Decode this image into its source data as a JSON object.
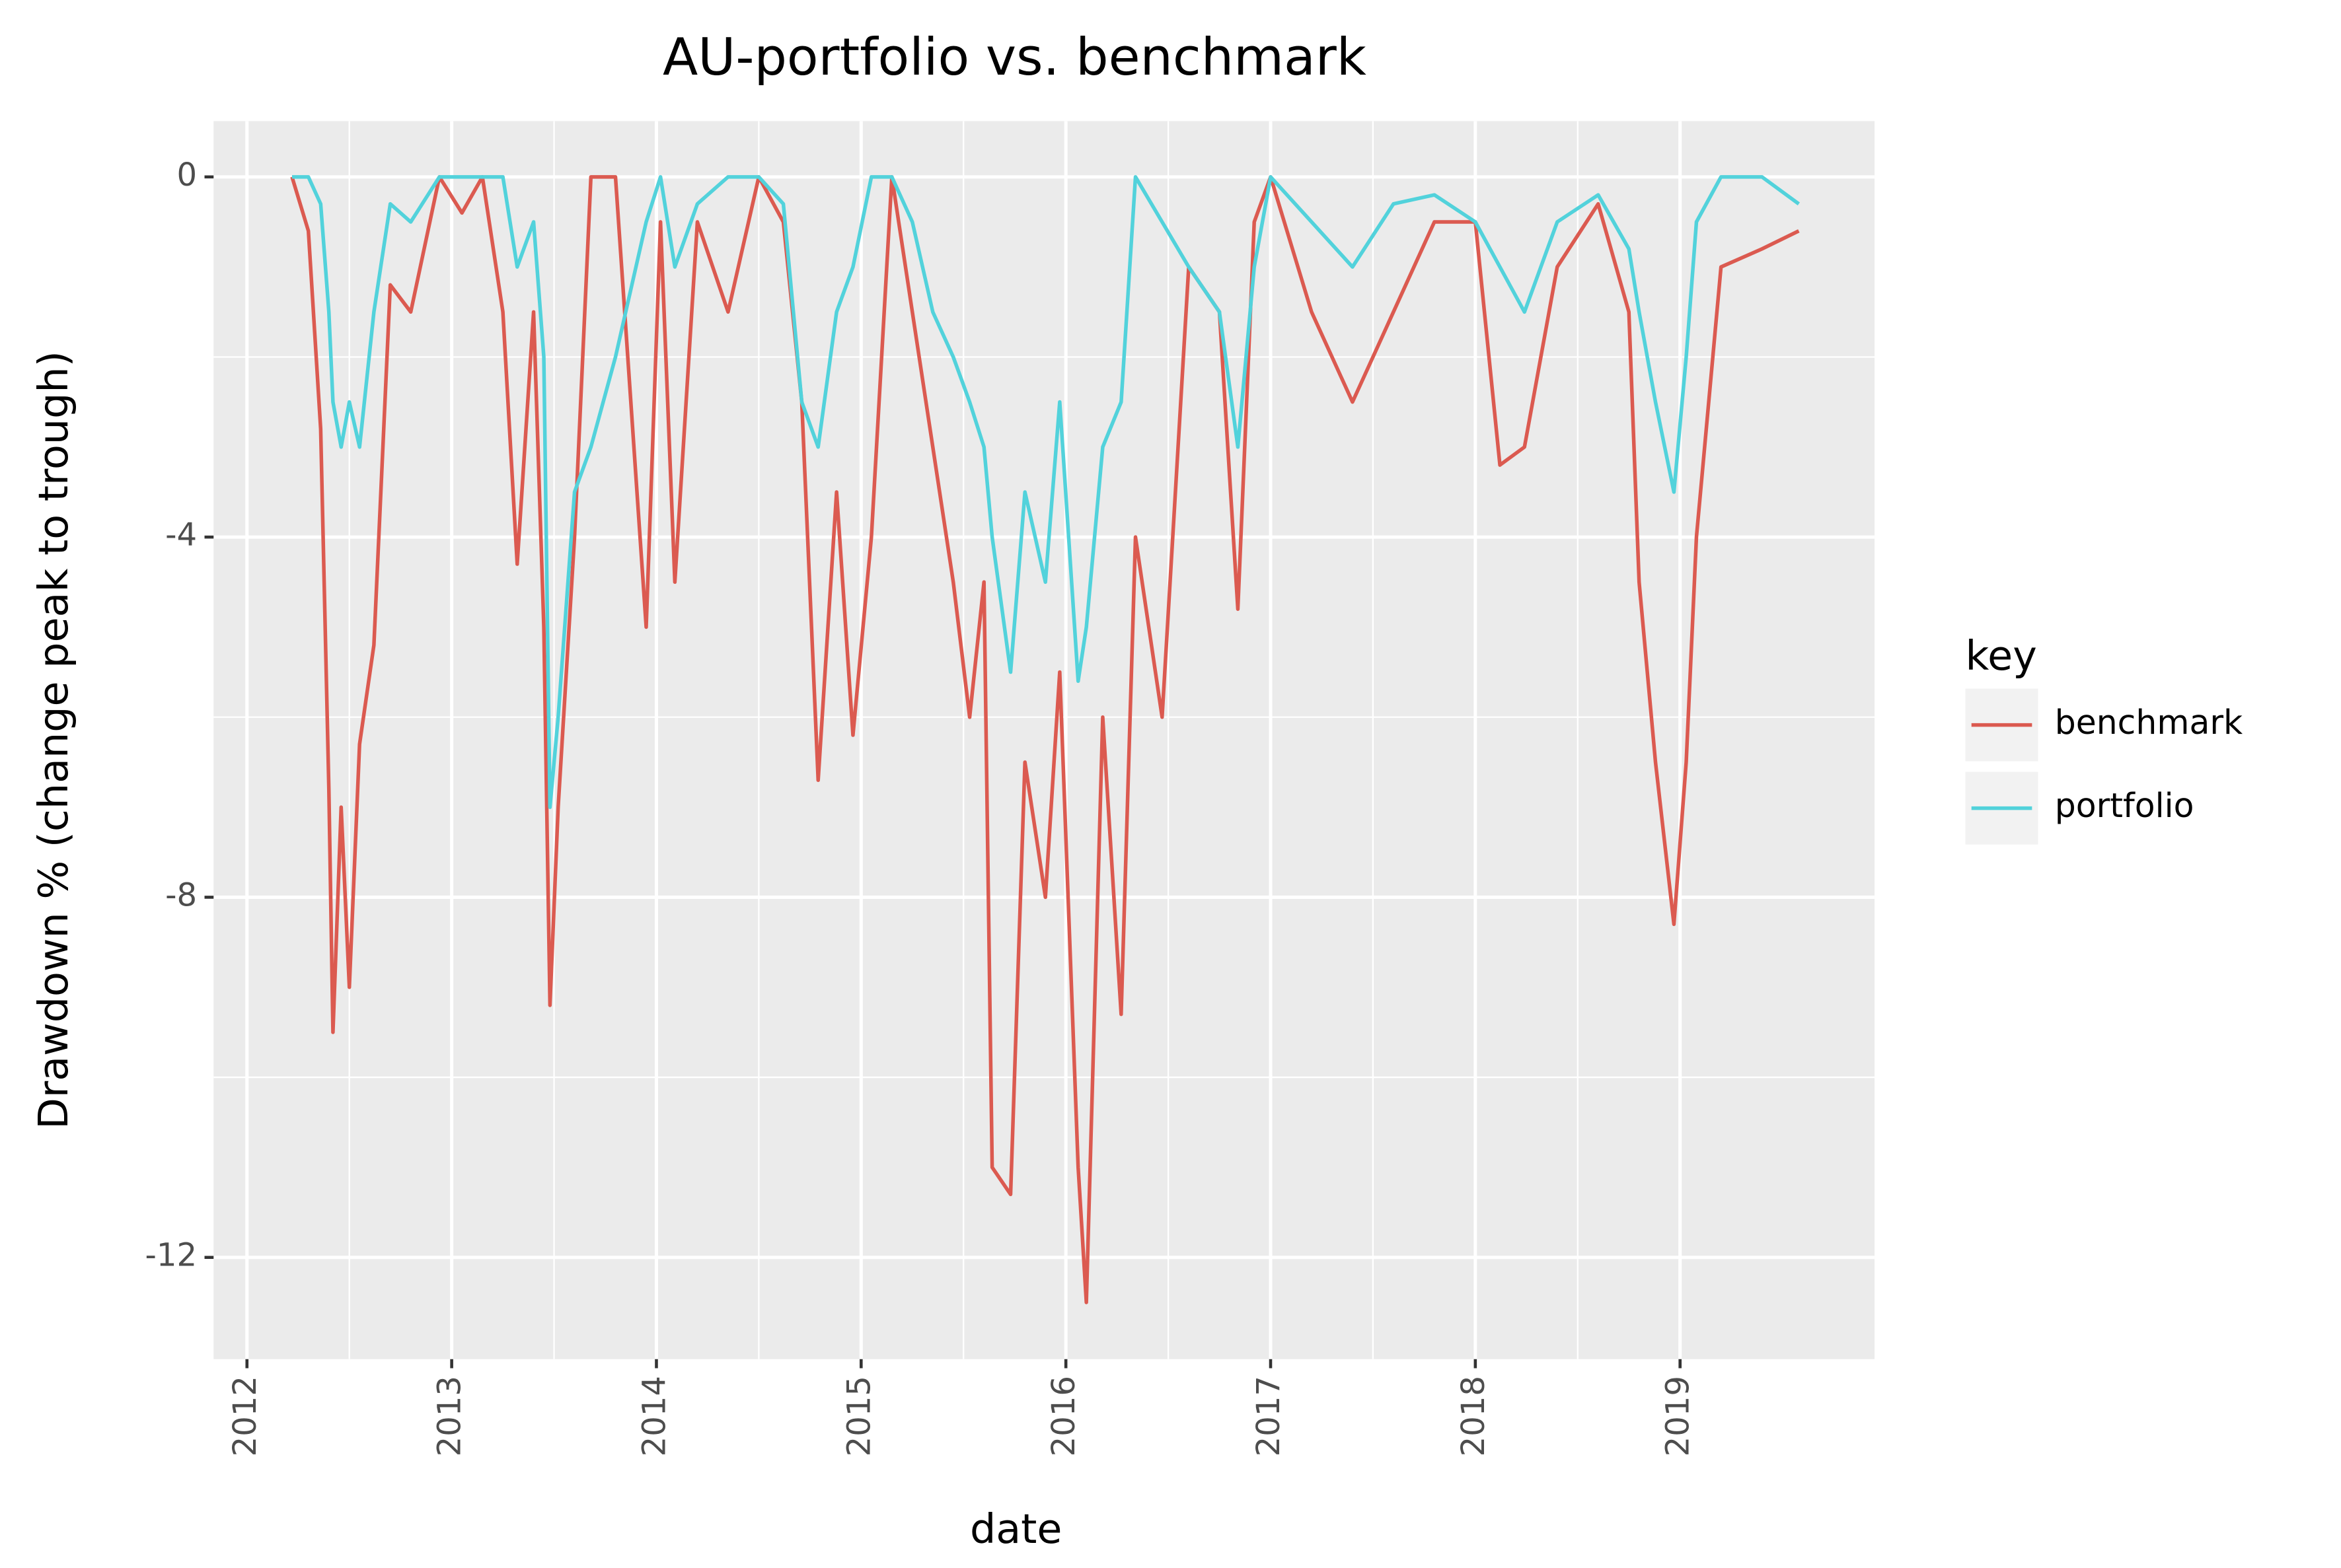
{
  "chart_data": {
    "type": "line",
    "title": "AU-portfolio vs. benchmark",
    "x_label": "date",
    "y_label": "Drawdown % (change peak to trough)",
    "legend_title": "key",
    "legend_position": "right",
    "grid": true,
    "x": [
      2012.22,
      2012.3,
      2012.36,
      2012.4,
      2012.42,
      2012.46,
      2012.5,
      2012.55,
      2012.62,
      2012.7,
      2012.8,
      2012.94,
      2013.05,
      2013.15,
      2013.25,
      2013.32,
      2013.4,
      2013.45,
      2013.48,
      2013.52,
      2013.6,
      2013.68,
      2013.8,
      2013.95,
      2014.02,
      2014.09,
      2014.2,
      2014.35,
      2014.5,
      2014.62,
      2014.71,
      2014.79,
      2014.88,
      2014.96,
      2015.05,
      2015.15,
      2015.25,
      2015.35,
      2015.45,
      2015.53,
      2015.6,
      2015.64,
      2015.73,
      2015.8,
      2015.9,
      2015.97,
      2016.06,
      2016.1,
      2016.18,
      2016.27,
      2016.34,
      2016.47,
      2016.6,
      2016.75,
      2016.84,
      2016.92,
      2017.0,
      2017.2,
      2017.4,
      2017.6,
      2017.8,
      2018.0,
      2018.12,
      2018.24,
      2018.4,
      2018.6,
      2018.75,
      2018.8,
      2018.88,
      2018.97,
      2019.03,
      2019.08,
      2019.2,
      2019.4,
      2019.58
    ],
    "series": [
      {
        "name": "benchmark",
        "color": "#DB5A50",
        "values": [
          0,
          -0.6,
          -2.8,
          -6.8,
          -9.5,
          -7,
          -9,
          -6.3,
          -5.2,
          -1.2,
          -1.5,
          0,
          -0.4,
          0,
          -1.5,
          -4.3,
          -1.5,
          -5,
          -9.2,
          -7,
          -4,
          0,
          0,
          -5,
          -0.5,
          -4.5,
          -0.5,
          -1.5,
          0,
          -0.5,
          -2.5,
          -6.7,
          -3.5,
          -6.2,
          -4,
          0,
          -1.5,
          -3,
          -4.5,
          -6,
          -4.5,
          -11,
          -11.3,
          -6.5,
          -8,
          -5.5,
          -11,
          -12.5,
          -6,
          -9.3,
          -4,
          -6,
          -1,
          -1.5,
          -4.8,
          -0.5,
          0,
          -1.5,
          -2.5,
          -1.5,
          -0.5,
          -0.5,
          -3.2,
          -3,
          -1,
          -0.3,
          -1.5,
          -4.5,
          -6.5,
          -8.3,
          -6.5,
          -4,
          -1,
          -0.8,
          -0.6
        ]
      },
      {
        "name": "portfolio",
        "color": "#52D2DB",
        "values": [
          0,
          0,
          -0.3,
          -1.5,
          -2.5,
          -3,
          -2.5,
          -3,
          -1.5,
          -0.3,
          -0.5,
          0,
          0,
          0,
          0,
          -1,
          -0.5,
          -2,
          -7,
          -6,
          -3.5,
          -3,
          -2,
          -0.5,
          0,
          -1,
          -0.3,
          0,
          0,
          -0.3,
          -2.5,
          -3,
          -1.5,
          -1,
          0,
          0,
          -0.5,
          -1.5,
          -2,
          -2.5,
          -3,
          -4,
          -5.5,
          -3.5,
          -4.5,
          -2.5,
          -5.6,
          -5,
          -3,
          -2.5,
          0,
          -0.5,
          -1,
          -1.5,
          -3,
          -1,
          0,
          -0.5,
          -1,
          -0.3,
          -0.2,
          -0.5,
          -1,
          -1.5,
          -0.5,
          -0.2,
          -0.8,
          -1.5,
          -2.5,
          -3.5,
          -2,
          -0.5,
          0,
          0,
          -0.3
        ]
      }
    ],
    "xlim": [
      2011.837,
      2019.95
    ],
    "xticks": [
      2012,
      2013,
      2014,
      2015,
      2016,
      2017,
      2018,
      2019
    ],
    "ylim": [
      -13.13,
      0.62
    ],
    "yticks": [
      0,
      -4,
      -8,
      -12
    ]
  }
}
